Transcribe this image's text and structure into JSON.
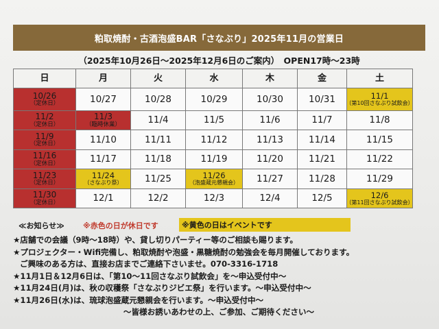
{
  "title": "粕取焼酎・古酒泡盛BAR「さなぶり」2025年11月の営業日",
  "subtitle": "（2025年10月26日～2025年12月6日のご案内）　OPEN17時～23時",
  "weekdays": [
    "日",
    "月",
    "火",
    "水",
    "木",
    "金",
    "土"
  ],
  "weeks": [
    [
      {
        "date": "10/26",
        "note": "（定休日）",
        "type": "holiday"
      },
      {
        "date": "10/27",
        "note": "",
        "type": "open"
      },
      {
        "date": "10/28",
        "note": "",
        "type": "open"
      },
      {
        "date": "10/29",
        "note": "",
        "type": "open"
      },
      {
        "date": "10/30",
        "note": "",
        "type": "open"
      },
      {
        "date": "10/31",
        "note": "",
        "type": "open"
      },
      {
        "date": "11/1",
        "note": "（第10回さなぶり試飲会）",
        "type": "event"
      }
    ],
    [
      {
        "date": "11/2",
        "note": "（定休日）",
        "type": "holiday"
      },
      {
        "date": "11/3",
        "note": "（臨時休業）",
        "type": "holiday"
      },
      {
        "date": "11/4",
        "note": "",
        "type": "open"
      },
      {
        "date": "11/5",
        "note": "",
        "type": "open"
      },
      {
        "date": "11/6",
        "note": "",
        "type": "open"
      },
      {
        "date": "11/7",
        "note": "",
        "type": "open"
      },
      {
        "date": "11/8",
        "note": "",
        "type": "open"
      }
    ],
    [
      {
        "date": "11/9",
        "note": "（定休日）",
        "type": "holiday"
      },
      {
        "date": "11/10",
        "note": "",
        "type": "open"
      },
      {
        "date": "11/11",
        "note": "",
        "type": "open"
      },
      {
        "date": "11/12",
        "note": "",
        "type": "open"
      },
      {
        "date": "11/13",
        "note": "",
        "type": "open"
      },
      {
        "date": "11/14",
        "note": "",
        "type": "open"
      },
      {
        "date": "11/15",
        "note": "",
        "type": "open"
      }
    ],
    [
      {
        "date": "11/16",
        "note": "（定休日）",
        "type": "holiday"
      },
      {
        "date": "11/17",
        "note": "",
        "type": "open"
      },
      {
        "date": "11/18",
        "note": "",
        "type": "open"
      },
      {
        "date": "11/19",
        "note": "",
        "type": "open"
      },
      {
        "date": "11/20",
        "note": "",
        "type": "open"
      },
      {
        "date": "11/21",
        "note": "",
        "type": "open"
      },
      {
        "date": "11/22",
        "note": "",
        "type": "open"
      }
    ],
    [
      {
        "date": "11/23",
        "note": "（定休日）",
        "type": "holiday"
      },
      {
        "date": "11/24",
        "note": "（さなぶり祭）",
        "type": "event"
      },
      {
        "date": "11/25",
        "note": "",
        "type": "open"
      },
      {
        "date": "11/26",
        "note": "（泡盛蔵元懇親会）",
        "type": "event"
      },
      {
        "date": "11/27",
        "note": "",
        "type": "open"
      },
      {
        "date": "11/28",
        "note": "",
        "type": "open"
      },
      {
        "date": "11/29",
        "note": "",
        "type": "open"
      }
    ],
    [
      {
        "date": "11/30",
        "note": "（定休日）",
        "type": "holiday"
      },
      {
        "date": "12/1",
        "note": "",
        "type": "open"
      },
      {
        "date": "12/2",
        "note": "",
        "type": "open"
      },
      {
        "date": "12/3",
        "note": "",
        "type": "open"
      },
      {
        "date": "12/4",
        "note": "",
        "type": "open"
      },
      {
        "date": "12/5",
        "note": "",
        "type": "open"
      },
      {
        "date": "12/6",
        "note": "（第11回さなぶり試飲会）",
        "type": "event"
      }
    ]
  ],
  "legend": {
    "notice": "≪お知らせ≫",
    "red": "※赤色の日が休日です",
    "yellow": "※黄色の日はイベントです"
  },
  "notes": {
    "line1": "★店舗での会議（9時～18時）や、貸し切りパーティー等のご相談も賜ります。",
    "line2": "★プロジェクター・Wifi完備し、粕取焼酎や泡盛・黒糖焼酎の勉強会を毎月開催しております。",
    "line3": "ご興味のある方は、直接お店までご連絡下さいませ。070-3316-1718",
    "line4": "★11月1日＆12月6日は、「第10～11回さなぶり試飲会」を～申込受付中～",
    "line5": "★11月24日(月)は、秋の収穫祭「さなぶりジビエ祭」を行います。～申込受付中～",
    "line6": "★11月26日(水)は、琉球泡盛蔵元懇親会を行います。～申込受付中～",
    "line7": "～皆様お誘いあわせの上、ご参加、ご期待ください～"
  },
  "colors": {
    "banner": "#86693a",
    "holiday": "#b8302f",
    "event": "#e4c51c",
    "legend_red_text": "#c0392b"
  }
}
